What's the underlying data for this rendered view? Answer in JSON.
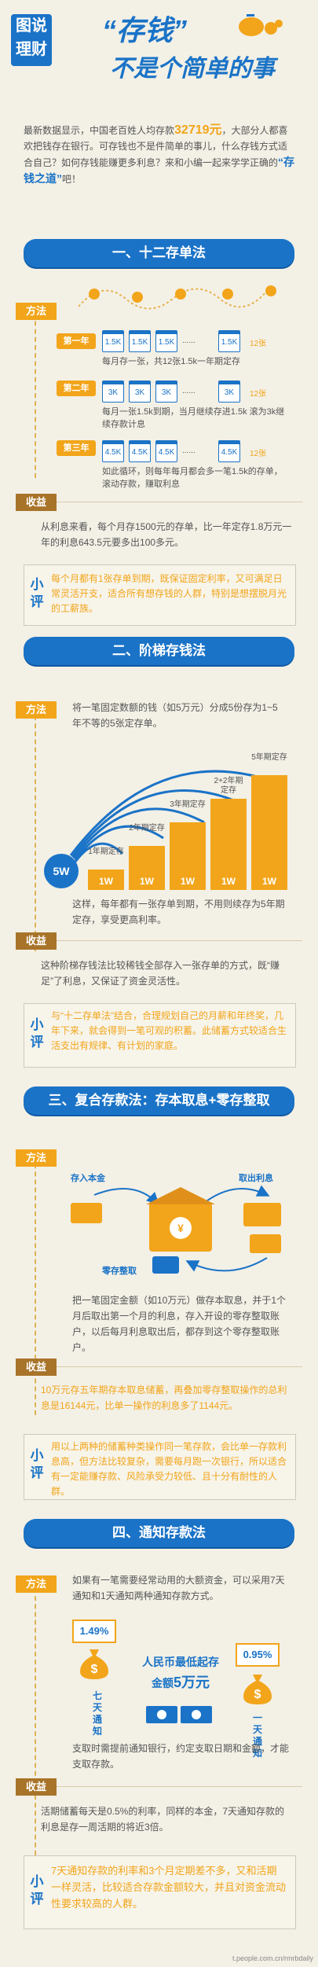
{
  "header": {
    "badge_line1": "图说",
    "badge_line2": "理财",
    "title_line1": "“存钱”",
    "title_line2": "不是个简单的事"
  },
  "intro": {
    "text1": "最新数据显示，中国老百姓人均存款",
    "amount": "32719元",
    "text2": "，大部分人都喜欢把钱存在银行。可存钱也不是件简单的事儿，什么存钱方式适合自己？如何存钱能赚更多利息？来和小编一起来学学正确的",
    "highlight": "“存钱之道”",
    "text3": "吧！"
  },
  "section1": {
    "title": "一、十二存单法",
    "method_tag": "方法",
    "income_tag": "收益",
    "comment_label": "小评",
    "year1": "第一年",
    "year2": "第二年",
    "year3": "第三年",
    "year1_cards": [
      "1.5K",
      "1.5K",
      "1.5K",
      "1.5K"
    ],
    "year2_cards": [
      "3K",
      "3K",
      "3K",
      "3K"
    ],
    "year3_cards": [
      "4.5K",
      "4.5K",
      "4.5K",
      "4.5K"
    ],
    "ellipsis": "......",
    "count_label": "12张",
    "year1_text": "每月存一张，共12张1.5k一年期定存",
    "year2_text": "每月一张1.5k到期，当月继续存进1.5k 滚为3k继续存款计息",
    "year3_text": "如此循环，则每年每月都会多一笔1.5k的存单，滚动存款，赚取利息",
    "income_text": "从利息来看，每个月存1500元的存单，比一年定存1.8万元一年的利息643.5元要多出100多元。",
    "comment_text": "每个月都有1张存单到期，既保证固定利率，又可满足日常灵活开支，适合所有想存钱的人群，特别是想摆脱月光的工薪族。"
  },
  "section2": {
    "title": "二、阶梯存钱法",
    "method_tag": "方法",
    "income_tag": "收益",
    "comment_label": "小评",
    "method_text": "将一笔固定数额的钱（如5万元）分成5份存为1~5年不等的5张定存单。",
    "total_label": "5W",
    "bars": [
      {
        "label": "1W",
        "caption": "1年期定存",
        "value": 1
      },
      {
        "label": "1W",
        "caption": "2年期定存",
        "value": 2
      },
      {
        "label": "1W",
        "caption": "3年期定存",
        "value": 3
      },
      {
        "label": "1W",
        "caption": "2+2年期定存",
        "value": 4
      },
      {
        "label": "1W",
        "caption": "5年期定存",
        "value": 5
      }
    ],
    "after_text": "这样，每年都有一张存单到期，不用则续存为5年期定存，享受更高利率。",
    "income_text": "这种阶梯存钱法比较稀钱全部存入一张存单的方式，既“赚足”了利息，又保证了资金灵活性。",
    "comment_text": "与“十二存单法”结合，合理规划自己的月薪和年终奖，几年下来，就会得到一笔可观的积蓄。此储蓄方式较适合生活支出有规律、有计划的家庭。"
  },
  "section3": {
    "title": "三、复合存款法：存本取息+零存整取",
    "method_tag": "方法",
    "income_tag": "收益",
    "comment_label": "小评",
    "label_deposit": "存入本金",
    "label_interest": "取出利息",
    "label_zero": "零存整取",
    "method_text": "把一笔固定金额（如10万元）做存本取息，并于1个月后取出第一个月的利息，存入开设的零存整取账户，以后每月利息取出后，都存到这个零存整取账户。",
    "income_text": "10万元存五年期存本取息储蓄，再叠加零存整取操作的总利息是16144元，比单一操作的利息多了1144元。",
    "comment_text": "用以上两种的储蓄种类操作同一笔存款，会比单一存款利息高，但方法比较复杂，需要每月跑一次银行，所以适合有一定能赚存款、风险承受力较低、且十分有耐性的人群。"
  },
  "section4": {
    "title": "四、通知存款法",
    "method_tag": "方法",
    "income_tag": "收益",
    "comment_label": "小评",
    "method_text": "如果有一笔需要经常动用的大额资金，可以采用7天通知和1天通知两种通知存款方式。",
    "rate_left": "1.49%",
    "rate_right": "0.95%",
    "label_left": "七天通知",
    "label_right": "一天通知",
    "center_text1": "人民币最低起存",
    "center_text2": "金额",
    "center_amount": "5万元",
    "note_text": "支取时需提前通知银行，约定支取日期和金额，才能支取存款。",
    "income_text": "活期储蓄每天是0.5%的利率，同样的本金，7天通知存款的利息是存一周活期的将近3倍。",
    "comment_text": "7天通知存款的利率和3个月定期差不多，又和活期一样灵活，比较适合存款金额较大，并且对资金流动性要求较高的人群。"
  },
  "footer": {
    "source": "t.people.com.cn/rmrbdaily"
  },
  "colors": {
    "accent_blue": "#1a73c7",
    "accent_orange": "#f2a51a",
    "background": "#f3f0e6"
  }
}
